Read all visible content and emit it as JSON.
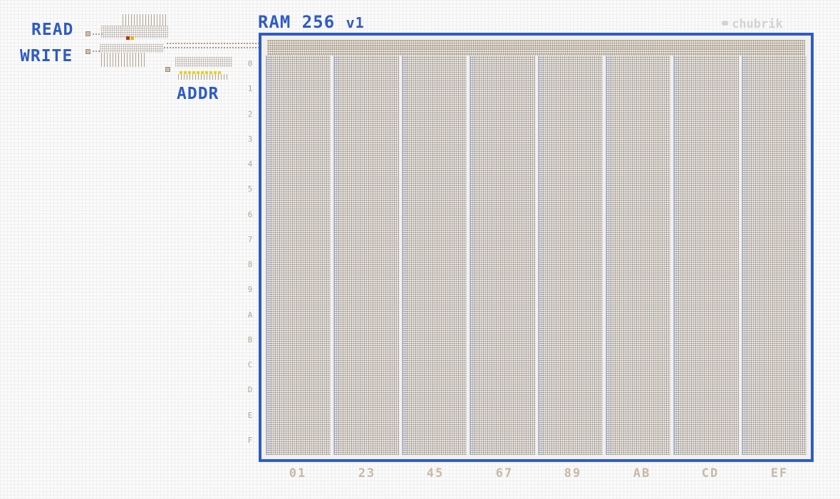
{
  "title": "RAM 256",
  "version": "v1",
  "brand": "chubrik",
  "inputs": {
    "read": "READ",
    "write": "WRITE",
    "addr": "ADDR"
  },
  "row_labels": [
    "0",
    "1",
    "2",
    "3",
    "4",
    "5",
    "6",
    "7",
    "8",
    "9",
    "A",
    "B",
    "C",
    "D",
    "E",
    "F"
  ],
  "column_labels": [
    "01",
    "23",
    "45",
    "67",
    "89",
    "AB",
    "CD",
    "EF"
  ],
  "colors": {
    "accent": "#2f5bc4",
    "wire": "#a89b88",
    "active_red": "#b8331c",
    "active_yellow": "#e8d21d"
  }
}
